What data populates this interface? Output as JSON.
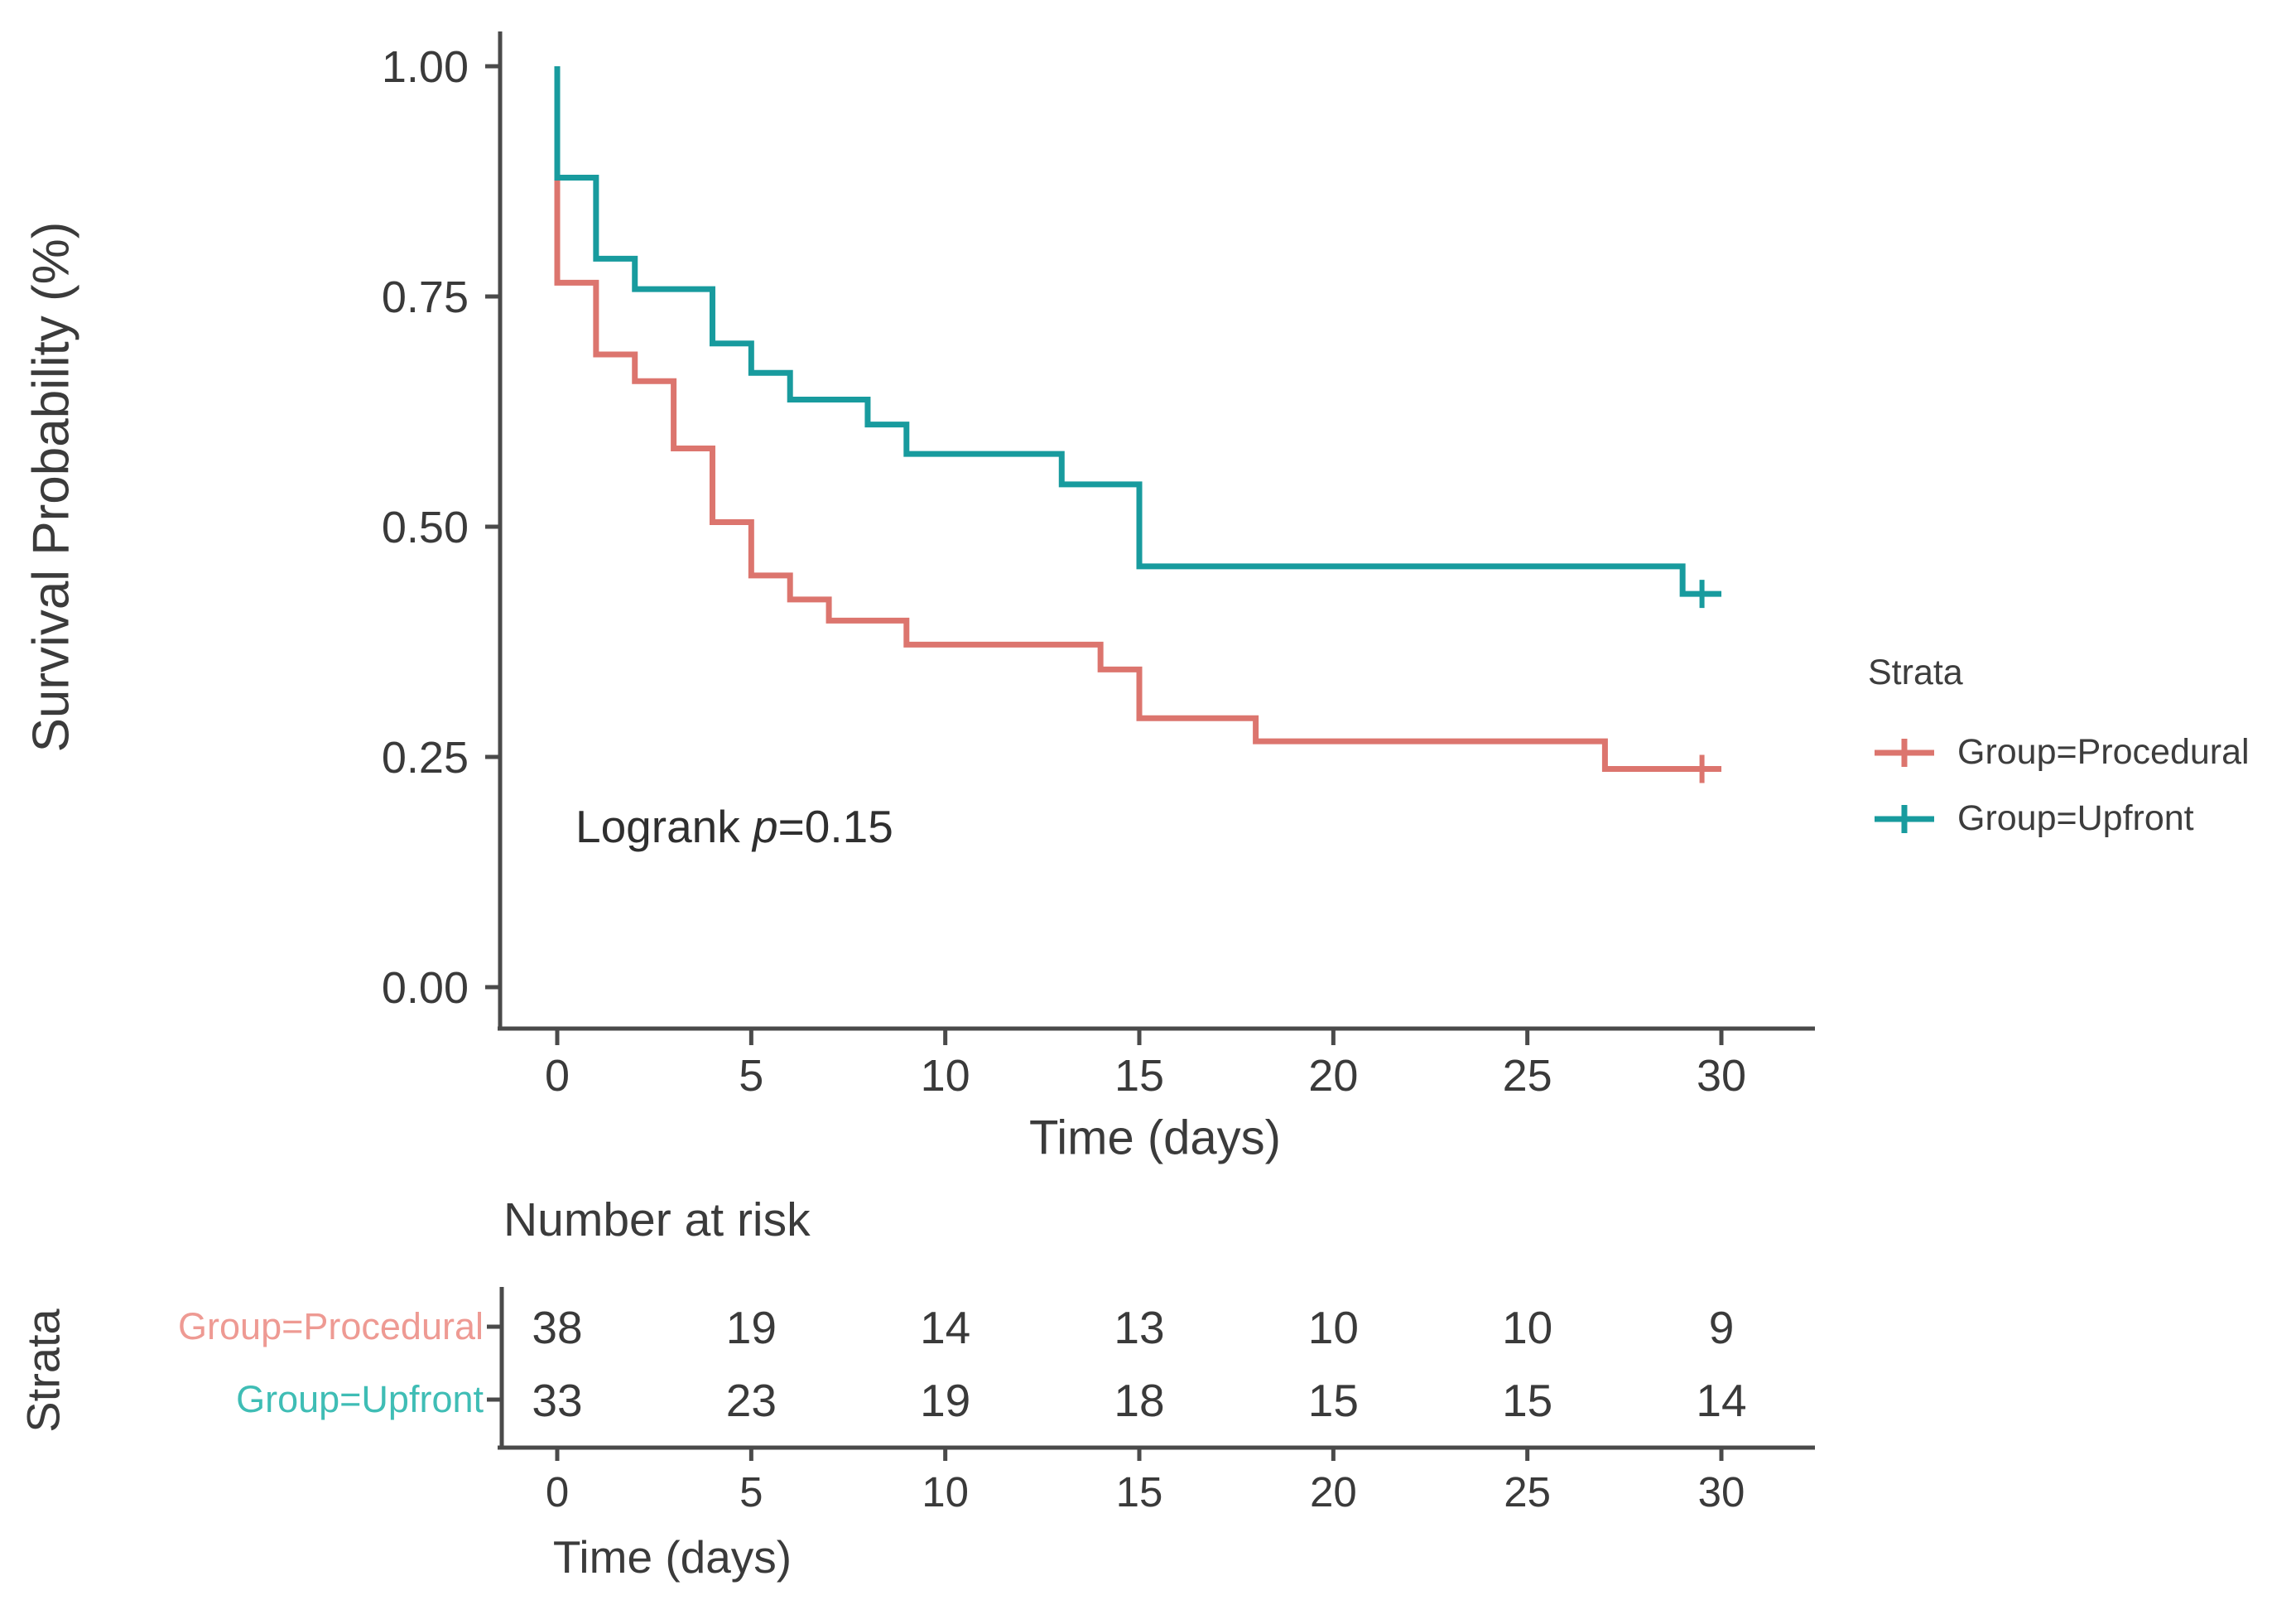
{
  "chart_data": {
    "type": "line",
    "subtype": "kaplan-meier-step-curves",
    "xlabel": "Time (days)",
    "ylabel": "Survival Probability (%)",
    "xlim": [
      0,
      30
    ],
    "ylim": [
      0,
      1
    ],
    "x_ticks": [
      0,
      5,
      10,
      15,
      20,
      25,
      30
    ],
    "y_tick_labels": [
      "1.00",
      "0.75",
      "0.50",
      "0.25",
      "0.00"
    ],
    "y_tick_values": [
      1.0,
      0.75,
      0.5,
      0.25,
      0.0
    ],
    "grid": false,
    "legend_position": "right",
    "annotation": {
      "text": "Logrank p=0.15",
      "prefix": "Logrank ",
      "p": "p",
      "suffix": "=0.15"
    },
    "series": [
      {
        "name": "Group=Procedural",
        "color": "#DC756E",
        "label_color": "#EE9A93",
        "steps": [
          [
            0,
            1.0
          ],
          [
            0,
            0.765
          ],
          [
            1,
            0.687
          ],
          [
            2,
            0.658
          ],
          [
            3,
            0.585
          ],
          [
            4,
            0.505
          ],
          [
            5,
            0.447
          ],
          [
            6,
            0.421
          ],
          [
            7,
            0.398
          ],
          [
            9,
            0.372
          ],
          [
            14,
            0.345
          ],
          [
            15,
            0.292
          ],
          [
            18,
            0.267
          ],
          [
            27,
            0.237
          ]
        ],
        "end_time": 30,
        "censors": [
          [
            29.5,
            0.237
          ]
        ]
      },
      {
        "name": "Group=Upfront",
        "color": "#189B9E",
        "label_color": "#3FBDB5",
        "steps": [
          [
            0,
            1.0
          ],
          [
            0,
            0.879
          ],
          [
            1,
            0.791
          ],
          [
            2,
            0.758
          ],
          [
            4,
            0.699
          ],
          [
            5,
            0.667
          ],
          [
            6,
            0.638
          ],
          [
            8,
            0.611
          ],
          [
            9,
            0.579
          ],
          [
            13,
            0.546
          ],
          [
            15,
            0.457
          ],
          [
            29,
            0.427
          ]
        ],
        "end_time": 30,
        "censors": [
          [
            29.5,
            0.427
          ]
        ]
      }
    ]
  },
  "legend": {
    "title": "Strata",
    "items": [
      {
        "label": "Group=Procedural"
      },
      {
        "label": "Group=Upfront"
      }
    ]
  },
  "risk_table": {
    "title": "Number at risk",
    "strata_axis_label": "Strata",
    "xlabel": "Time (days)",
    "times": [
      0,
      5,
      10,
      15,
      20,
      25,
      30
    ],
    "rows": [
      {
        "label": "Group=Procedural",
        "counts": [
          38,
          19,
          14,
          13,
          10,
          10,
          9
        ]
      },
      {
        "label": "Group=Upfront",
        "counts": [
          33,
          23,
          19,
          18,
          15,
          15,
          14
        ]
      }
    ]
  }
}
